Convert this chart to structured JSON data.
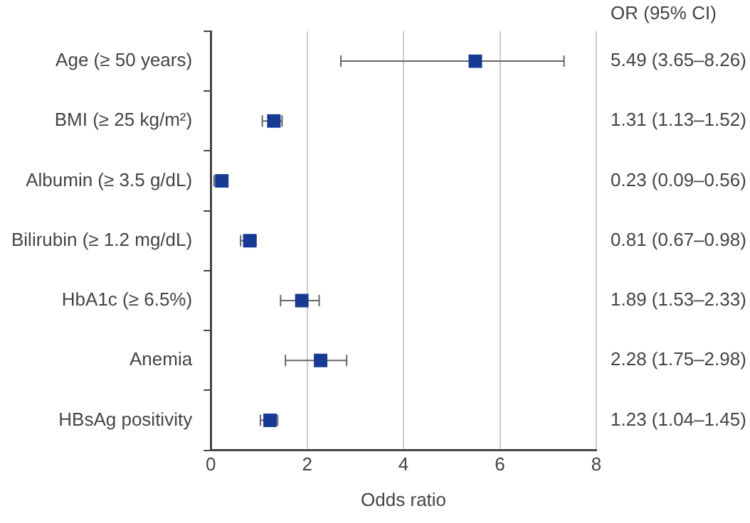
{
  "chart_data": {
    "type": "scatter",
    "orientation": "horizontal",
    "xlabel": "Odds ratio",
    "categories": [
      "Age (≥ 50 years)",
      "BMI (≥ 25 kg/m²)",
      "Albumin (≥ 3.5 g/dL)",
      "Bilirubin (≥ 1.2 mg/dL)",
      "HbA1c (≥ 6.5%)",
      "Anemia",
      "HBsAg positivity"
    ],
    "values": [
      5.49,
      1.31,
      0.23,
      0.81,
      1.89,
      2.28,
      1.23
    ],
    "errors": [
      [
        2.7,
        7.33
      ],
      [
        1.07,
        1.48
      ],
      [
        0.07,
        0.35
      ],
      [
        0.62,
        0.94
      ],
      [
        1.45,
        2.25
      ],
      [
        1.55,
        2.82
      ],
      [
        1.03,
        1.39
      ]
    ],
    "value_labels": [
      "5.49 (3.65–8.26)",
      "1.31 (1.13–1.52)",
      "0.23 (0.09–0.56)",
      "0.81 (0.67–0.98)",
      "1.89 (1.53–2.33)",
      "2.28 (1.75–2.98)",
      "1.23 (1.04–1.45)"
    ],
    "annotations": [
      "OR (95% CI)"
    ],
    "color": "#173a94",
    "marker": "square",
    "xlim": [
      0,
      8
    ],
    "xticks": [
      0,
      2,
      4,
      6,
      8
    ],
    "grid": "x",
    "legend": false
  }
}
